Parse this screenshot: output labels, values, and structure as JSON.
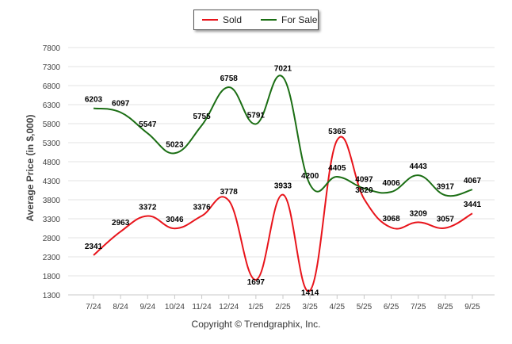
{
  "chart_data": {
    "type": "line",
    "title": "",
    "xlabel": "",
    "ylabel": "Average Price (in $,000)",
    "categories": [
      "7/24",
      "8/24",
      "9/24",
      "10/24",
      "11/24",
      "12/24",
      "1/25",
      "2/25",
      "3/25",
      "4/25",
      "5/25",
      "6/25",
      "7/25",
      "8/25",
      "9/25"
    ],
    "ylim": [
      1300,
      7800
    ],
    "yticks": [
      1300,
      1800,
      2300,
      2800,
      3300,
      3800,
      4300,
      4800,
      5300,
      5800,
      6300,
      6800,
      7300,
      7800
    ],
    "grid": true,
    "legend": "top-center",
    "series": [
      {
        "name": "Sold",
        "color": "#e8141b",
        "values": [
          2341,
          2963,
          3372,
          3046,
          3376,
          3778,
          1697,
          3933,
          1414,
          5365,
          3820,
          3068,
          3209,
          3057,
          3441
        ]
      },
      {
        "name": "For Sale",
        "color": "#1b6e14",
        "values": [
          6203,
          6097,
          5547,
          5023,
          5755,
          6758,
          5791,
          7021,
          4200,
          4405,
          4097,
          4006,
          4443,
          3917,
          4067
        ]
      }
    ]
  },
  "legend": {
    "sold_label": "Sold",
    "for_sale_label": "For Sale"
  },
  "copyright": "Copyright © Trendgraphix, Inc."
}
